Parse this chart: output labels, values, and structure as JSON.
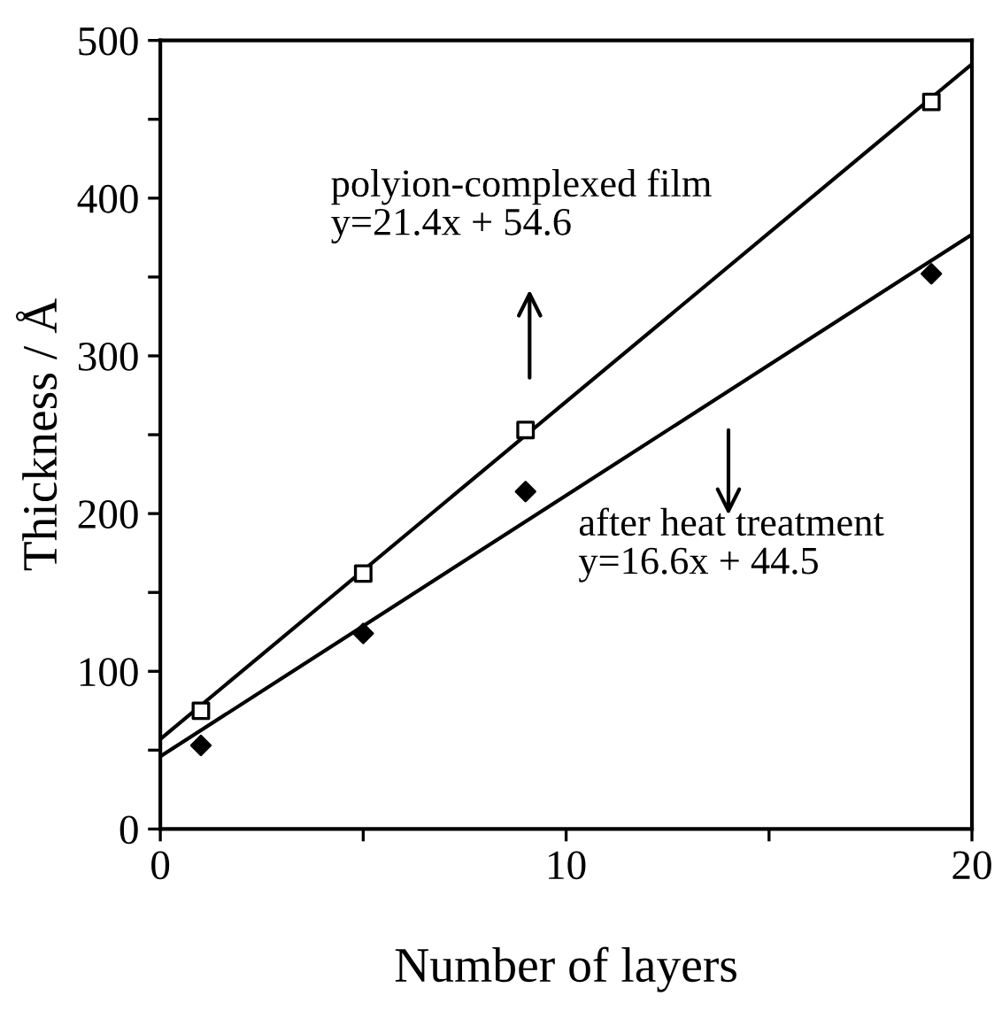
{
  "chart_data": {
    "type": "scatter",
    "xlabel": "Number of layers",
    "ylabel": "Thickness / Å",
    "xlim": [
      0,
      20
    ],
    "ylim": [
      0,
      500
    ],
    "xticks": [
      0,
      {
        "value": 5,
        "label": null
      },
      10,
      {
        "value": 15,
        "label": null
      },
      20
    ],
    "yticks": [
      0,
      {
        "value": 50,
        "label": null
      },
      100,
      {
        "value": 150,
        "label": null
      },
      200,
      {
        "value": 250,
        "label": null
      },
      300,
      {
        "value": 350,
        "label": null
      },
      400,
      {
        "value": 450,
        "label": null
      },
      500
    ],
    "grid": false,
    "legend": false,
    "series": [
      {
        "color": "#000000",
        "marker": "square",
        "x": [
          1,
          5,
          9,
          19
        ],
        "values": [
          75,
          162,
          253,
          461
        ]
      },
      {
        "color": "#000000",
        "marker": "diamond",
        "x": [
          1,
          5,
          9,
          19
        ],
        "values": [
          53,
          124,
          214,
          352
        ]
      },
      {
        "type": "line",
        "color": "#000000",
        "marker": "none",
        "line_style": "solid",
        "x": [
          0,
          20
        ],
        "values": [
          57,
          485
        ]
      },
      {
        "type": "line",
        "color": "#000000",
        "marker": "none",
        "line_style": "solid",
        "x": [
          0,
          20
        ],
        "values": [
          46,
          377
        ]
      }
    ],
    "annotations": [
      "polyion-complexed film\ny=21.4x + 54.6",
      "after heat treatment\ny=16.6x + 44.5"
    ]
  }
}
